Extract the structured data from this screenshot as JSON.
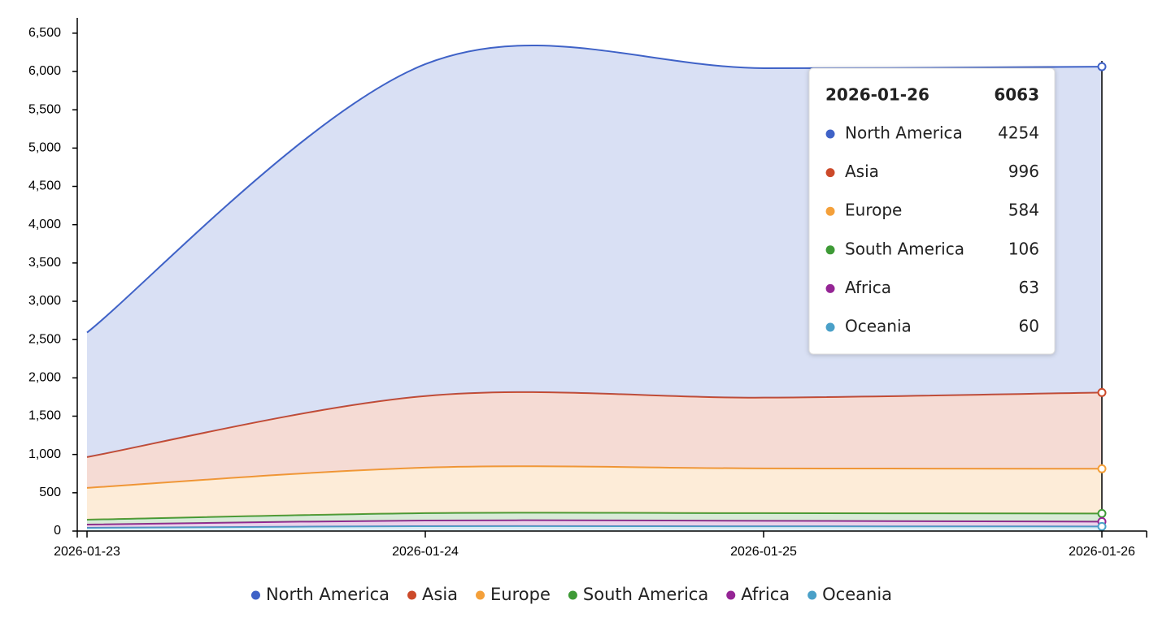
{
  "chart_data": {
    "type": "stacked-area",
    "x": [
      "2026-01-23",
      "2026-01-24",
      "2026-01-25",
      "2026-01-26"
    ],
    "series": [
      {
        "name": "North America",
        "color": "#3f62c7",
        "values": [
          1625,
          4333,
          4301,
          4254
        ]
      },
      {
        "name": "Asia",
        "color": "#cc4a2a",
        "values": [
          403,
          935,
          924,
          996
        ]
      },
      {
        "name": "Europe",
        "color": "#f4a03a",
        "values": [
          414,
          594,
          584,
          584
        ]
      },
      {
        "name": "South America",
        "color": "#3e9a36",
        "values": [
          64,
          96,
          100,
          106
        ]
      },
      {
        "name": "Africa",
        "color": "#952595",
        "values": [
          43,
          74,
          72,
          63
        ]
      },
      {
        "name": "Oceania",
        "color": "#4aa0c8",
        "values": [
          42,
          64,
          62,
          60
        ]
      }
    ],
    "ylim": [
      0,
      6700
    ],
    "yticks": [
      0,
      500,
      {
        "value": 1000,
        "label": "1,000"
      },
      {
        "value": 1500,
        "label": "1,500"
      },
      {
        "value": 2000,
        "label": "2,000"
      },
      {
        "value": 2500,
        "label": "2,500"
      },
      {
        "value": 3000,
        "label": "3,000"
      },
      {
        "value": 3500,
        "label": "3,500"
      },
      {
        "value": 4000,
        "label": "4,000"
      },
      {
        "value": 4500,
        "label": "4,500"
      },
      {
        "value": 5000,
        "label": "5,000"
      },
      {
        "value": 5500,
        "label": "5,500"
      },
      {
        "value": 6000,
        "label": "6,000"
      },
      {
        "value": 6500,
        "label": "6,500"
      }
    ],
    "tooltip": {
      "total": 6063
    }
  }
}
